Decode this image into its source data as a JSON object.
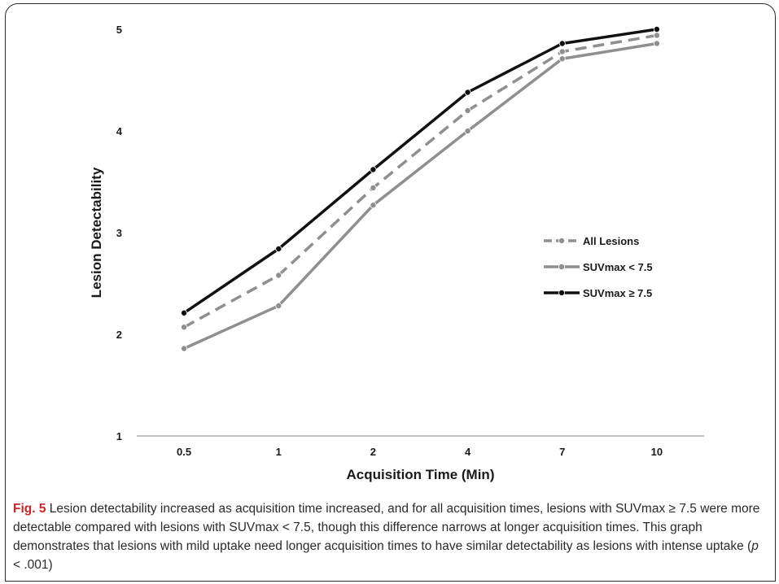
{
  "chart_data": {
    "type": "line",
    "title": "",
    "xlabel": "Acquisition Time (Min)",
    "ylabel": "Lesion Detectability",
    "categories": [
      "0.5",
      "1",
      "2",
      "4",
      "7",
      "10"
    ],
    "ylim": [
      1,
      5
    ],
    "yticks": [
      "1",
      "2",
      "3",
      "4",
      "5"
    ],
    "grid": false,
    "legend_position": "right",
    "series": [
      {
        "name": "All Lesions",
        "values": [
          2.07,
          2.58,
          3.44,
          4.2,
          4.78,
          4.94
        ],
        "color": "#8f8f8f",
        "style": "dashed"
      },
      {
        "name": "SUVmax < 7.5",
        "values": [
          1.86,
          2.28,
          3.27,
          4.0,
          4.71,
          4.86
        ],
        "color": "#8f8f8f",
        "style": "solid"
      },
      {
        "name": "SUVmax ≥ 7.5",
        "values": [
          2.21,
          2.84,
          3.62,
          4.38,
          4.86,
          5.0
        ],
        "color": "#111111",
        "style": "solid"
      }
    ]
  },
  "caption": {
    "label": "Fig. 5",
    "text_before_p": " Lesion detectability increased as acquisition time increased, and for all acquisition times, lesions with SUVmax ≥ 7.5 were more detectable compared with lesions with SUVmax < 7.5, though this difference narrows at longer acquisition times. This graph demonstrates that lesions with mild uptake need longer acquisition times to have similar detectability as lesions with intense uptake (",
    "p_symbol": "p",
    "text_after_p": " < .001)"
  }
}
